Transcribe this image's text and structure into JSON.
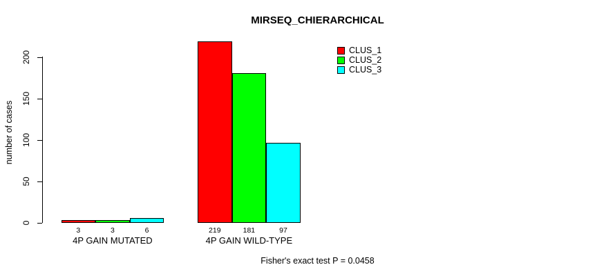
{
  "chart_data": {
    "type": "bar",
    "title": "MIRSEQ_CHIERARCHICAL",
    "xlabel": "",
    "ylabel": "number of cases",
    "categories": [
      "4P GAIN MUTATED",
      "4P GAIN WILD-TYPE"
    ],
    "series": [
      {
        "name": "CLUS_1",
        "color": "#ff0000",
        "values": [
          3,
          219
        ]
      },
      {
        "name": "CLUS_2",
        "color": "#00ff00",
        "values": [
          3,
          181
        ]
      },
      {
        "name": "CLUS_3",
        "color": "#00ffff",
        "values": [
          6,
          97
        ]
      }
    ],
    "yticks": [
      0,
      50,
      100,
      150,
      200
    ],
    "ylim": [
      0,
      220
    ],
    "grid": false,
    "bar_value_labels_shown": true,
    "legend_position": "top-right",
    "axis_color": "#000000",
    "background_color": "#ffffff",
    "annotation": "Fisher's exact test P = 0.0458"
  }
}
